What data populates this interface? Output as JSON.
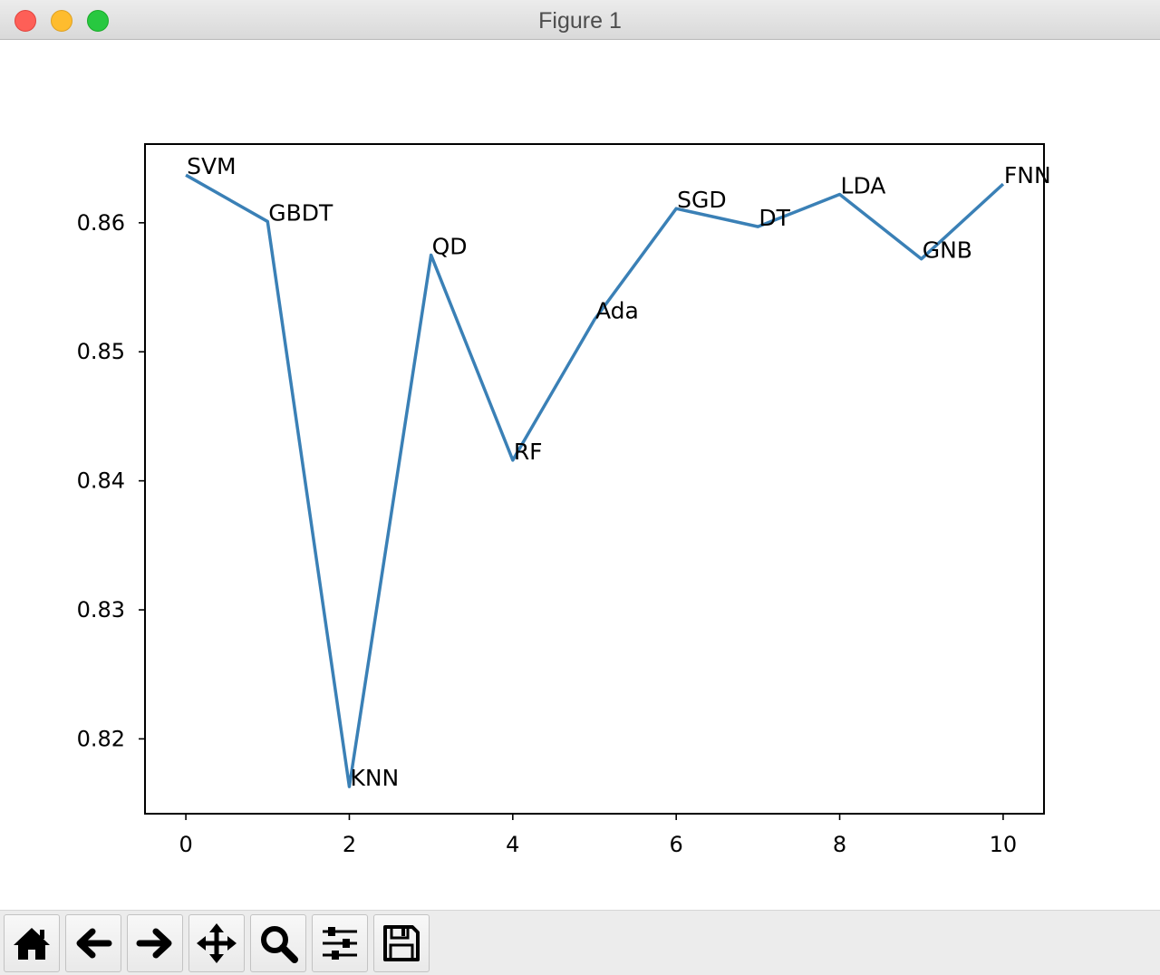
{
  "window": {
    "title": "Figure 1"
  },
  "toolbar": {
    "buttons": [
      {
        "name": "home-button",
        "icon": "home-icon"
      },
      {
        "name": "back-button",
        "icon": "arrow-left-icon"
      },
      {
        "name": "forward-button",
        "icon": "arrow-right-icon"
      },
      {
        "name": "pan-button",
        "icon": "move-icon"
      },
      {
        "name": "zoom-button",
        "icon": "magnifier-icon"
      },
      {
        "name": "configure-subplots-button",
        "icon": "sliders-icon"
      },
      {
        "name": "save-button",
        "icon": "floppy-disk-icon"
      }
    ]
  },
  "chart_data": {
    "type": "line",
    "title": "",
    "xlabel": "",
    "ylabel": "",
    "x": [
      0,
      1,
      2,
      3,
      4,
      5,
      6,
      7,
      8,
      9,
      10
    ],
    "series": [
      {
        "color": "#3a80b6",
        "values": [
          0.8637,
          0.8601,
          0.8163,
          0.8575,
          0.8416,
          0.8525,
          0.8611,
          0.8597,
          0.8622,
          0.8572,
          0.863
        ]
      }
    ],
    "point_labels": [
      "SVM",
      "GBDT",
      "KNN",
      "QD",
      "RF",
      "Ada",
      "SGD",
      "DT",
      "LDA",
      "GNB",
      "FNN"
    ],
    "xlim": [
      -0.5,
      10.5
    ],
    "ylim": [
      0.8142,
      0.8661
    ],
    "xticks": [
      0,
      2,
      4,
      6,
      8,
      10
    ],
    "xtick_labels": [
      "0",
      "2",
      "4",
      "6",
      "8",
      "10"
    ],
    "yticks": [
      0.82,
      0.83,
      0.84,
      0.85,
      0.86
    ],
    "ytick_labels": [
      "0.82",
      "0.83",
      "0.84",
      "0.85",
      "0.86"
    ],
    "grid": false,
    "legend": false
  }
}
